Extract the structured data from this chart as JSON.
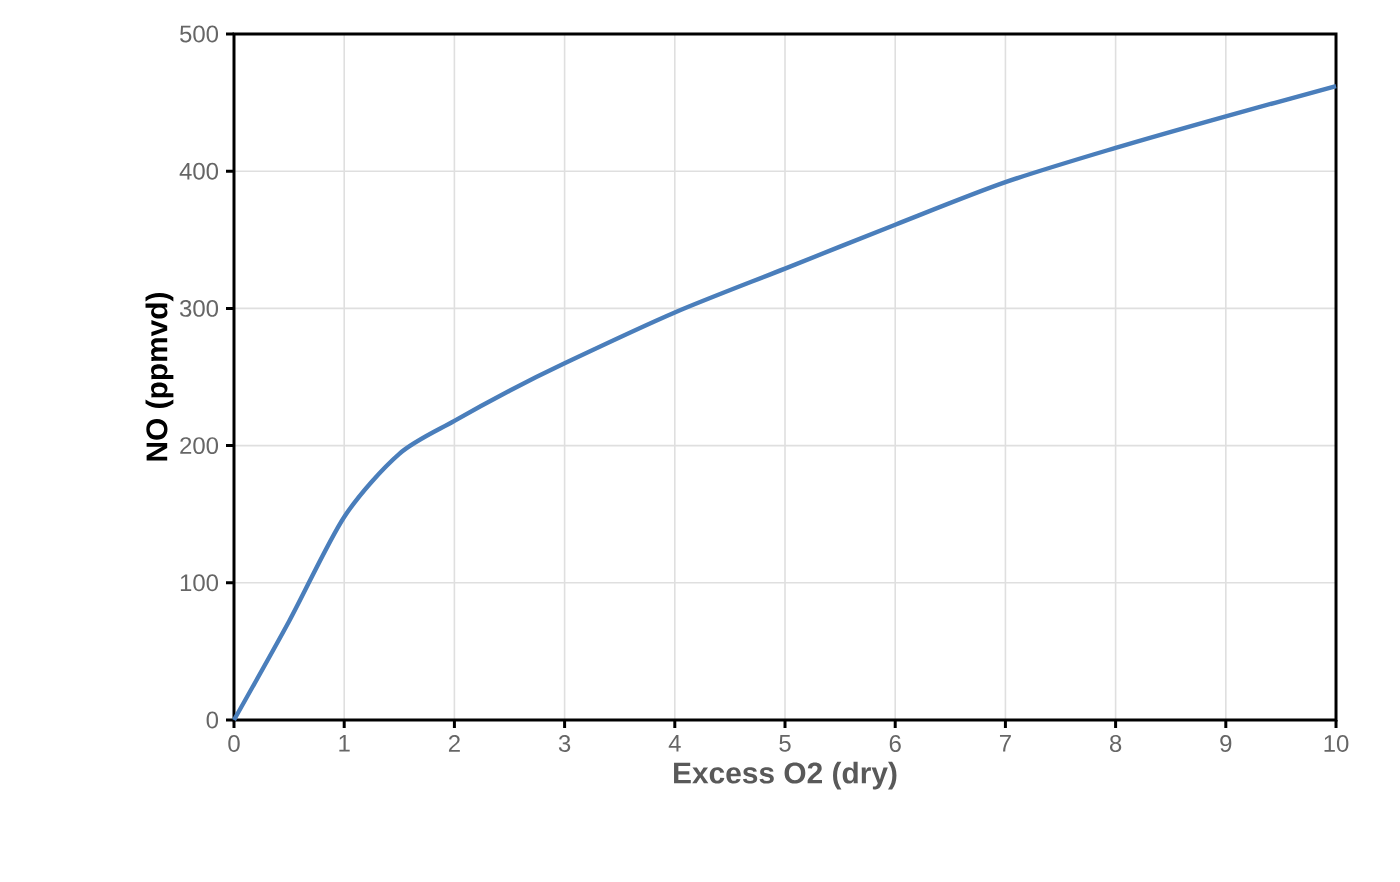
{
  "chart_data": {
    "type": "line",
    "xlabel": "Excess O2 (dry)",
    "ylabel": "NO (ppmvd)",
    "x": [
      0,
      0.5,
      1,
      1.5,
      2,
      2.5,
      3,
      4,
      5,
      6,
      7,
      8,
      9,
      10
    ],
    "series": [
      {
        "color": "#4a7ebb",
        "values": [
          0,
          72,
          148,
          194,
          218,
          240,
          260,
          297,
          329,
          361,
          392,
          417,
          440,
          462
        ]
      }
    ],
    "xlim": [
      0,
      10
    ],
    "ylim": [
      0,
      500
    ],
    "xticks": [
      0,
      1,
      2,
      3,
      4,
      5,
      6,
      7,
      8,
      9,
      10
    ],
    "yticks": [
      0,
      100,
      200,
      300,
      400,
      500
    ],
    "grid": true,
    "marker": "none",
    "line_style": "solid"
  }
}
